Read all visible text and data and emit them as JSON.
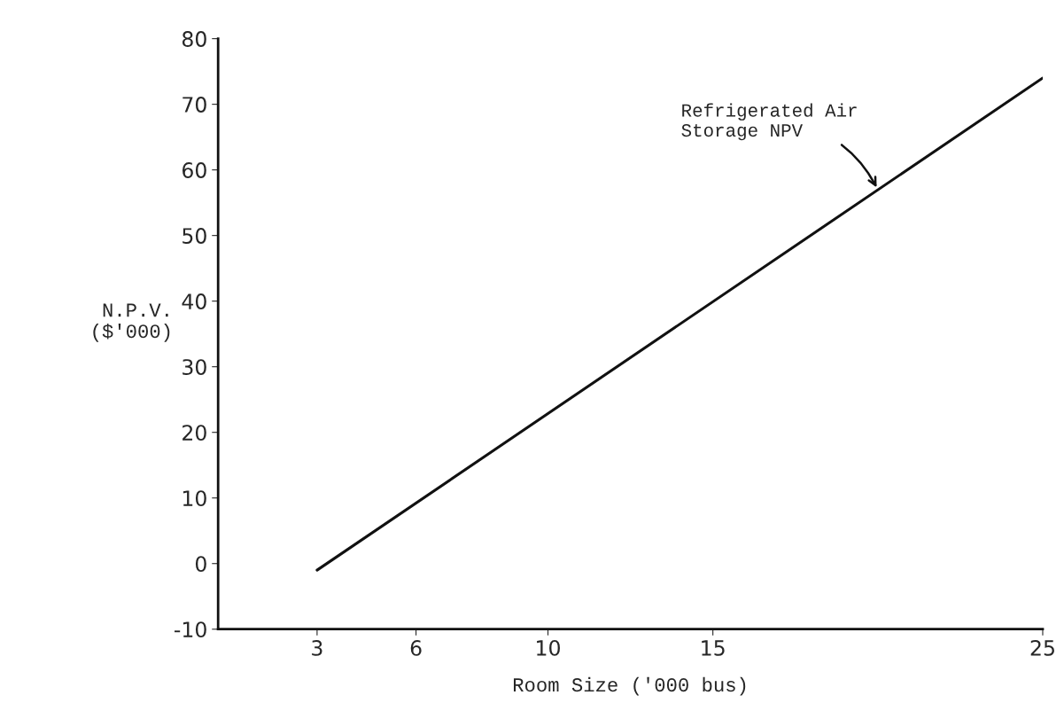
{
  "chart_data": {
    "type": "line",
    "xlabel": "Room Size ('000 bus)",
    "ylabel": "N.P.V.\n($'000)",
    "x": [
      3,
      25
    ],
    "series": [
      {
        "color": "#111111",
        "values": [
          -1,
          74
        ]
      }
    ],
    "xlim": [
      0,
      25
    ],
    "xticks": [
      3,
      6,
      10,
      15,
      25
    ],
    "ylim": [
      -10,
      80
    ],
    "yticks": [
      -10,
      0,
      10,
      20,
      30,
      40,
      50,
      60,
      70,
      80
    ],
    "annotations": [
      {
        "text": "Refrigerated Air\nStorage NPV",
        "x": 20,
        "y": 57
      }
    ],
    "marker": "none",
    "line_style": "solid"
  }
}
